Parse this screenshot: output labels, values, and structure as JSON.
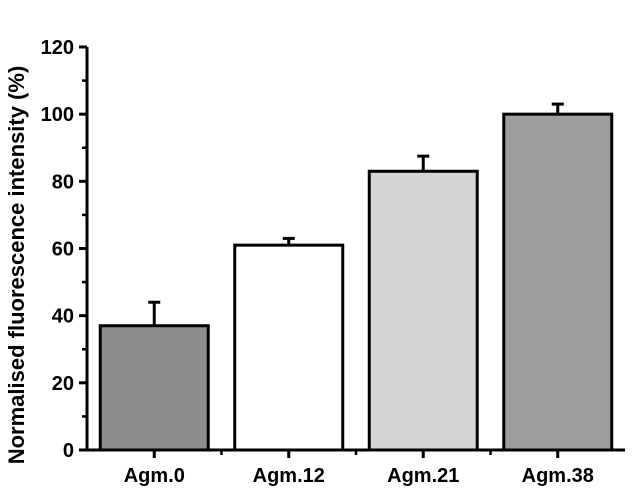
{
  "chart_data": {
    "type": "bar",
    "title": "",
    "xlabel": "",
    "ylabel": "Normalised fluorescence intensity (%)",
    "ylim": [
      0,
      120
    ],
    "yticks": [
      0,
      20,
      40,
      60,
      80,
      100,
      120
    ],
    "ytick_labels": [
      "0",
      "20",
      "40",
      "60",
      "80",
      "100",
      "120"
    ],
    "categories": [
      "Agm.0",
      "Agm.12",
      "Agm.21",
      "Agm.38"
    ],
    "values": [
      37,
      61,
      83,
      100
    ],
    "errors": [
      7,
      2,
      4.5,
      3
    ],
    "colors": {
      "bars": [
        "#8c8c8c",
        "#ffffff",
        "#d4d4d4",
        "#9e9e9e"
      ],
      "edge": "#000000"
    },
    "grid": false,
    "legend": "none"
  }
}
